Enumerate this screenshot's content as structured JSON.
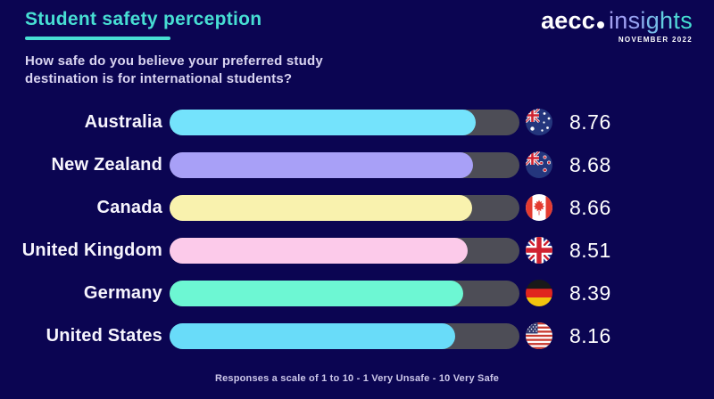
{
  "header": {
    "title": "Student safety perception",
    "subtitle": "How safe do you believe your preferred study destination is for international students?",
    "brand": {
      "name_left": "aecc",
      "name_right": "insights",
      "date": "NOVEMBER 2022"
    }
  },
  "footer": {
    "note": "Responses a scale of 1 to 10 - 1 Very Unsafe - 10 Very Safe"
  },
  "colors": {
    "background": "#0b0552",
    "accent": "#47ded3",
    "track": "#4d4d56",
    "label_text": "#f7f5fd",
    "subtitle_text": "#d9d4f1",
    "footer_text": "#cdc8ea"
  },
  "chart_data": {
    "type": "bar",
    "orientation": "horizontal",
    "title": "Student safety perception",
    "question": "How safe do you believe your preferred study destination is for international students?",
    "scale_min": 1,
    "scale_max": 10,
    "scale_note": "Responses a scale of 1 to 10 - 1 Very Unsafe - 10 Very Safe",
    "categories": [
      "Australia",
      "New Zealand",
      "Canada",
      "United Kingdom",
      "Germany",
      "United States"
    ],
    "values": [
      8.76,
      8.68,
      8.66,
      8.51,
      8.39,
      8.16
    ],
    "bar_colors": [
      "#74e3fc",
      "#a8a0f7",
      "#f9f2ae",
      "#fccaea",
      "#6df7d3",
      "#69dcf9"
    ],
    "flags": [
      "australia",
      "new-zealand",
      "canada",
      "united-kingdom",
      "germany",
      "united-states"
    ]
  }
}
